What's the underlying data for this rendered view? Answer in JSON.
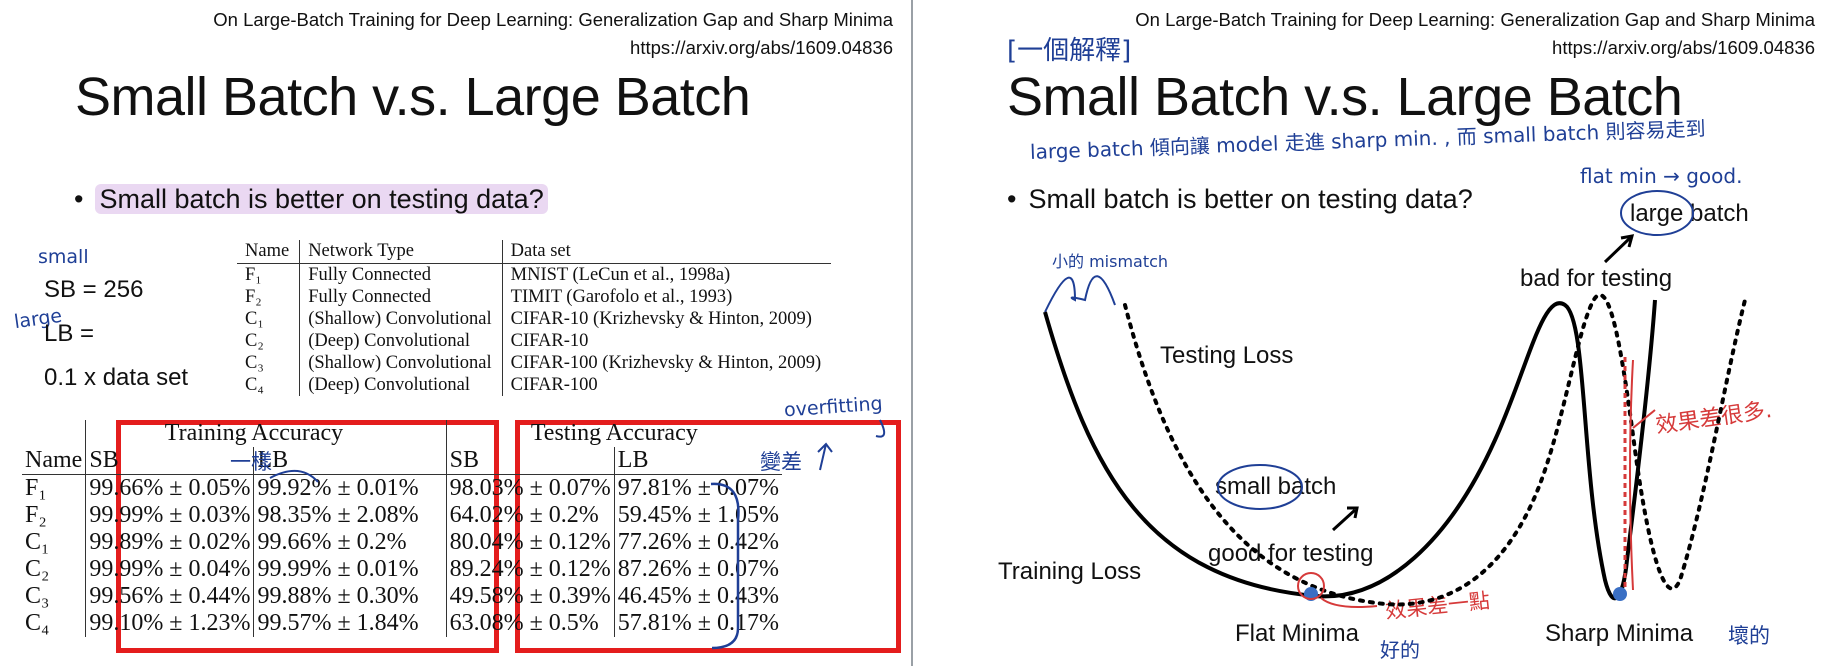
{
  "left": {
    "reference": {
      "title": "On Large-Batch Training for Deep Learning: Generalization Gap and Sharp Minima",
      "url": "https://arxiv.org/abs/1609.04836"
    },
    "heading": "Small Batch v.s. Large Batch",
    "bullet": "Small batch is better on testing data?",
    "sb_line": "SB = 256",
    "lb_line": "LB =",
    "lb_value": "0.1 x data set",
    "handwriting": {
      "small": "small",
      "large": "large",
      "same": "一樣",
      "worse": "變差",
      "overfitting": "overfitting"
    },
    "dataset_table": {
      "headers": [
        "Name",
        "Network Type",
        "Data set"
      ],
      "rows": [
        [
          "F₁",
          "Fully Connected",
          "MNIST (LeCun et al., 1998a)"
        ],
        [
          "F₂",
          "Fully Connected",
          "TIMIT (Garofolo et al., 1993)"
        ],
        [
          "C₁",
          "(Shallow) Convolutional",
          "CIFAR-10 (Krizhevsky & Hinton, 2009)"
        ],
        [
          "C₂",
          "(Deep) Convolutional",
          "CIFAR-10"
        ],
        [
          "C₃",
          "(Shallow) Convolutional",
          "CIFAR-100 (Krizhevsky & Hinton, 2009)"
        ],
        [
          "C₄",
          "(Deep) Convolutional",
          "CIFAR-100"
        ]
      ]
    },
    "accuracy_table": {
      "group_training": "Training Accuracy",
      "group_testing": "Testing Accuracy",
      "name_header": "Name",
      "sb": "SB",
      "lb": "LB",
      "rows": [
        [
          "F₁",
          "99.66% ± 0.05%",
          "99.92% ± 0.01%",
          "98.03% ± 0.07%",
          "97.81% ± 0.07%"
        ],
        [
          "F₂",
          "99.99% ± 0.03%",
          "98.35% ± 2.08%",
          "64.02% ± 0.2%",
          "59.45% ± 1.05%"
        ],
        [
          "C₁",
          "99.89% ± 0.02%",
          "99.66% ± 0.2%",
          "80.04% ± 0.12%",
          "77.26% ± 0.42%"
        ],
        [
          "C₂",
          "99.99% ± 0.04%",
          "99.99% ± 0.01%",
          "89.24% ± 0.12%",
          "87.26% ± 0.07%"
        ],
        [
          "C₃",
          "99.56% ± 0.44%",
          "99.88% ± 0.30%",
          "49.58% ± 0.39%",
          "46.45% ± 0.43%"
        ],
        [
          "C₄",
          "99.10% ± 1.23%",
          "99.57% ± 1.84%",
          "63.08% ± 0.5%",
          "57.81% ± 0.17%"
        ]
      ]
    }
  },
  "right": {
    "reference": {
      "title": "On Large-Batch Training for Deep Learning: Generalization Gap and Sharp Minima",
      "url": "https://arxiv.org/abs/1609.04836"
    },
    "heading": "Small Batch v.s. Large Batch",
    "bullet": "Small batch is better on testing data?",
    "labels": {
      "testing_loss": "Testing Loss",
      "training_loss": "Training Loss",
      "flat_minima": "Flat Minima",
      "sharp_minima": "Sharp Minima",
      "small_batch": "small batch",
      "good_for_testing": "good for testing",
      "large_batch": "large batch",
      "bad_for_testing": "bad for testing"
    },
    "handwriting": {
      "explanation_tag": "[一個解釋]",
      "note_line1": "large batch 傾向讓 model 走進 sharp min. , 而 small batch 則容易走到",
      "note_line2": "flat min → good.",
      "mismatch": "小的 mismatch",
      "bad_effect": "效果差很多.",
      "small_effect": "效果差一點",
      "good": "好的",
      "bad": "壞的"
    },
    "colors": {
      "ink_blue": "#1f3f96",
      "ink_red": "#d63a3a",
      "point_blue": "#3a6fc4"
    }
  }
}
